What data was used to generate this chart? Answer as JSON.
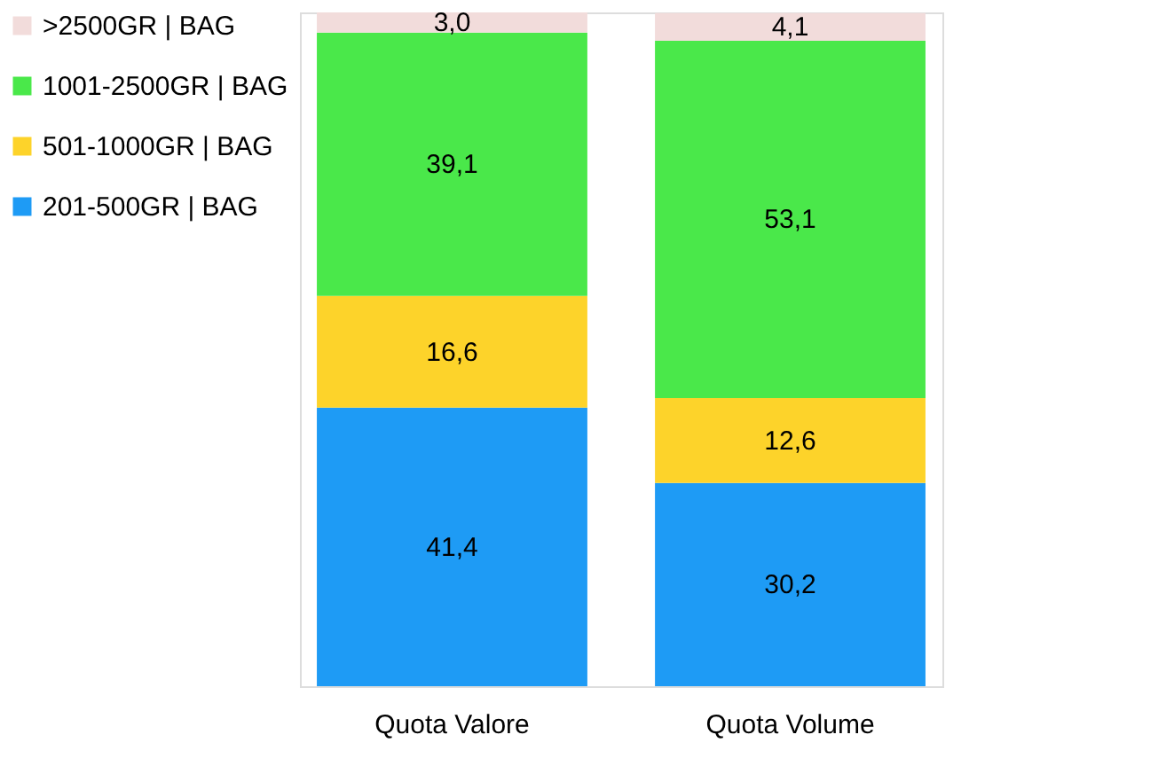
{
  "chart_data": {
    "type": "bar",
    "stacked": true,
    "legend": "left",
    "categories": [
      "Quota Valore",
      "Quota Volume"
    ],
    "series": [
      {
        "name": "201-500GR  | BAG",
        "color": "#1e9bf5",
        "values": [
          41.4,
          30.2
        ],
        "value_labels": [
          "41,4",
          "30,2"
        ]
      },
      {
        "name": " 501-1000GR  | BAG",
        "color": "#fdd32a",
        "values": [
          16.6,
          12.6
        ],
        "value_labels": [
          "16,6",
          "12,6"
        ]
      },
      {
        "name": "1001-2500GR  | BAG",
        "color": "#4ae84a",
        "values": [
          39.1,
          53.1
        ],
        "value_labels": [
          "39,1",
          "53,1"
        ]
      },
      {
        "name": " >2500GR | BAG",
        "color": "#f2dcdb",
        "values": [
          3.0,
          4.1
        ],
        "value_labels": [
          "3,0",
          "4,1"
        ]
      }
    ]
  }
}
